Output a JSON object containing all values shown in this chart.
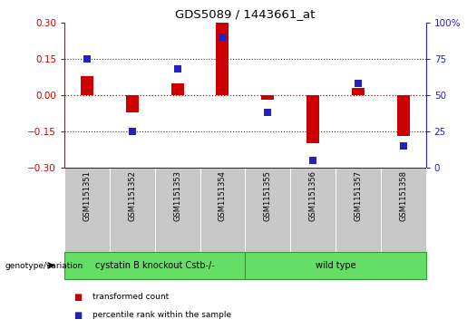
{
  "title": "GDS5089 / 1443661_at",
  "samples": [
    "GSM1151351",
    "GSM1151352",
    "GSM1151353",
    "GSM1151354",
    "GSM1151355",
    "GSM1151356",
    "GSM1151357",
    "GSM1151358"
  ],
  "transformed_count": [
    0.08,
    -0.07,
    0.05,
    0.3,
    -0.02,
    -0.2,
    0.03,
    -0.17
  ],
  "percentile_rank": [
    75,
    25,
    68,
    90,
    38,
    5,
    58,
    15
  ],
  "group1_count": 4,
  "group1_label": "cystatin B knockout Cstb-/-",
  "group2_label": "wild type",
  "ylim_left": [
    -0.3,
    0.3
  ],
  "ylim_right": [
    0,
    100
  ],
  "yticks_left": [
    -0.3,
    -0.15,
    0.0,
    0.15,
    0.3
  ],
  "yticks_right": [
    0,
    25,
    50,
    75,
    100
  ],
  "bar_color": "#cc0000",
  "dot_color": "#2222bb",
  "zero_line_color": "#cc0000",
  "dotted_line_color": "#333333",
  "group_bg_color": "#66dd66",
  "sample_bg_color": "#c8c8c8",
  "legend_bar_label": "transformed count",
  "legend_dot_label": "percentile rank within the sample",
  "genotype_label": "genotype/variation"
}
